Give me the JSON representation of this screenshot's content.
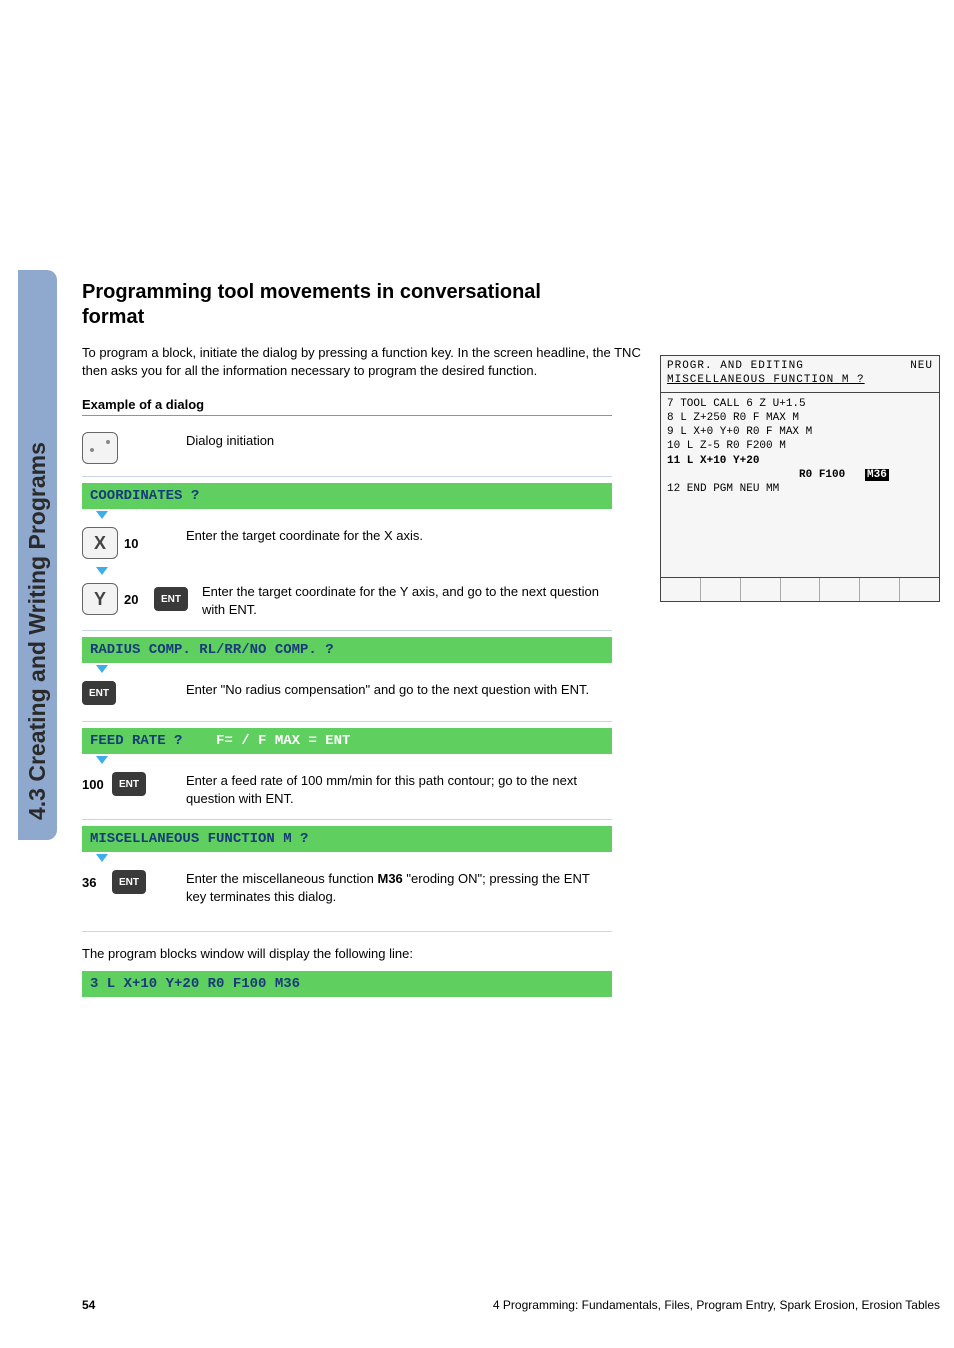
{
  "sidebar_label": "4.3 Creating and Writing Programs",
  "heading": "Programming tool movements in conversational format",
  "intro": "To program a block, initiate the dialog by pressing a function key. In the screen headline, the TNC then asks you for all the information necessary to program the desired function.",
  "subheading": "Example of a dialog",
  "rows": {
    "r1_desc": "Dialog initiation",
    "p1": "COORDINATES ?",
    "x_num": "10",
    "r2_desc": "Enter the target coordinate for the X axis.",
    "y_num": "20",
    "r3_desc": "Enter the target coordinate for the Y axis, and go to the next question with ENT.",
    "p2": "RADIUS COMP. RL/RR/NO COMP. ?",
    "r4_desc": "Enter \"No radius compensation\" and go to the next question with ENT.",
    "p3a": "FEED RATE ?",
    "p3b": "F=  / F MAX = ENT",
    "n100": "100",
    "r5_desc": "Enter a feed rate of 100 mm/min for this path contour; go to the next question with ENT.",
    "p4": "MISCELLANEOUS FUNCTION M ?",
    "n36": "36",
    "r6_desc_a": "Enter the miscellaneous function ",
    "r6_desc_b": "M36",
    "r6_desc_c": " \"eroding ON\"; pressing the ENT key terminates this dialog.",
    "closing": "The program blocks window will display the following line:",
    "result": "3  L X+10 Y+20 R0 F100 M36"
  },
  "labels": {
    "ent": "ENT",
    "x": "X",
    "y": "Y"
  },
  "screen": {
    "t1": "PROGR. AND EDITING",
    "t1r": "NEU",
    "t2": "MISCELLANEOUS FUNCTION M ?",
    "l1": "7    TOOL CALL 6 Z U+1.5",
    "l2": "8    L Z+250 R0 F MAX M",
    "l3": "9    L X+0 Y+0 R0 F MAX M",
    "l4": "10   L Z-5 R0 F200 M",
    "l5a": "11   L  X+10         Y+20",
    "l5b": "                    R0 F100   ",
    "l5c": "M36",
    "l6": "12   END PGM NEU MM"
  },
  "footer": {
    "page": "54",
    "caption": "4 Programming: Fundamentals, Files, Program Entry, Spark Erosion, Erosion Tables"
  }
}
